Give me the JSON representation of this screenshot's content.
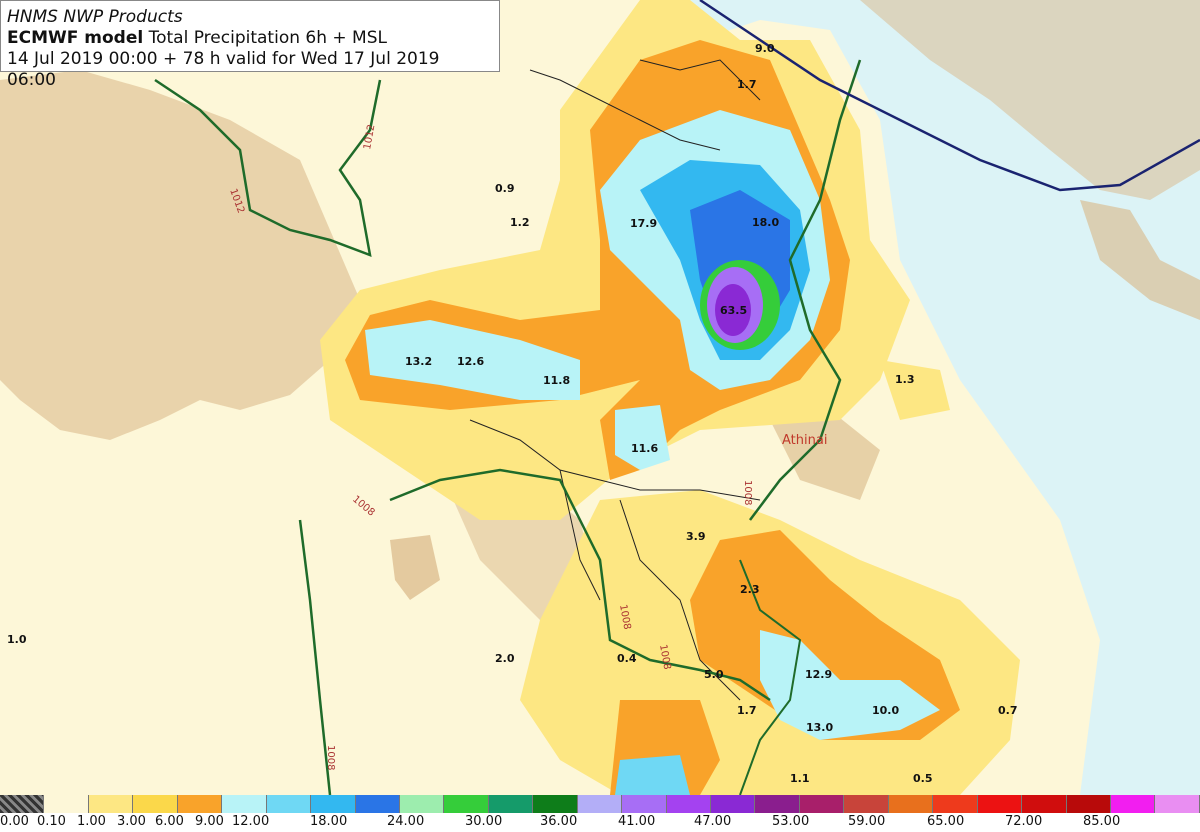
{
  "header": {
    "line1": "HNMS NWP Products",
    "line2_bold": "ECMWF model",
    "line2_rest": "Total Precipitation 6h + MSL",
    "line3": "14 Jul 2019 00:00 + 78 h valid for Wed 17 Jul 2019 06:00"
  },
  "map": {
    "city_label": "Athinai",
    "isobar_labels": [
      "1012",
      "1012",
      "1008",
      "1008",
      "1008",
      "1008",
      "1008"
    ],
    "values": [
      "9.0",
      "1.7",
      "0.9",
      "1.2",
      "17.9",
      "18.0",
      "63.5",
      "13.2",
      "12.6",
      "11.8",
      "1.3",
      "11.6",
      "3.9",
      "2.3",
      "1.0",
      "2.0",
      "0.4",
      "5.0",
      "12.9",
      "10.0",
      "0.7",
      "1.7",
      "13.0",
      "1.1",
      "0.5"
    ]
  },
  "legend": {
    "colors": [
      "#2a2a2a",
      "#fdf7d8",
      "#fde783",
      "#fbd84a",
      "#f9a32a",
      "#b8f3f7",
      "#6fd8f4",
      "#33b8f0",
      "#2a75e6",
      "#9dedae",
      "#35cd3a",
      "#159b6a",
      "#0e7d1a",
      "#b3aef7",
      "#a76ef5",
      "#a442f0",
      "#8a29d4",
      "#8a1e8e",
      "#a81f6a",
      "#c8443a",
      "#e8701d",
      "#ee3a1c",
      "#ec1212",
      "#d00d0d",
      "#b80a0a",
      "#f21ef0",
      "#e98ef2"
    ],
    "labels": [
      "0.00",
      "0.10",
      "1.00",
      "3.00",
      "6.00",
      "9.00",
      "12.00",
      "18.00",
      "24.00",
      "30.00",
      "36.00",
      "41.00",
      "47.00",
      "53.00",
      "59.00",
      "65.00",
      "72.00",
      "85.00"
    ]
  }
}
